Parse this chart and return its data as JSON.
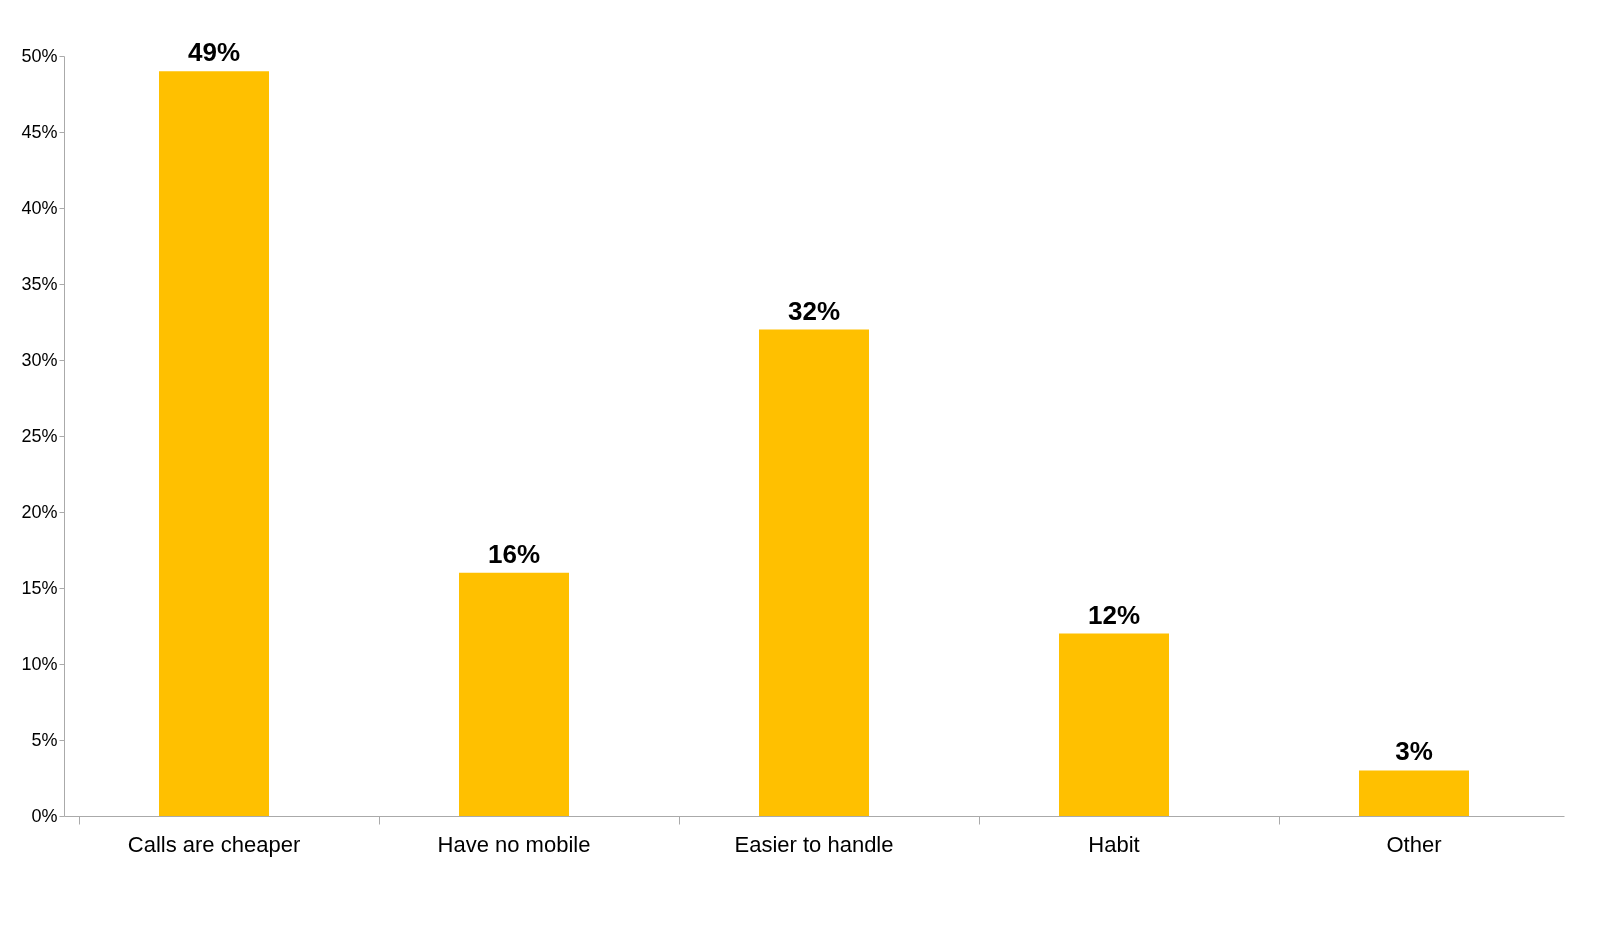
{
  "chart_data": {
    "type": "bar",
    "categories": [
      "Calls are cheaper",
      "Have no mobile",
      "Easier to handle",
      "Habit",
      "Other"
    ],
    "values": [
      49,
      16,
      32,
      12,
      3
    ],
    "value_labels": [
      "49%",
      "16%",
      "32%",
      "12%",
      "3%"
    ],
    "color": "#ffc000",
    "ylim": [
      0,
      50
    ],
    "yticks": [
      {
        "value": 0,
        "label": "0%"
      },
      {
        "value": 5,
        "label": "5%"
      },
      {
        "value": 10,
        "label": "10%"
      },
      {
        "value": 15,
        "label": "15%"
      },
      {
        "value": 20,
        "label": "20%"
      },
      {
        "value": 25,
        "label": "25%"
      },
      {
        "value": 30,
        "label": "30%"
      },
      {
        "value": 35,
        "label": "35%"
      },
      {
        "value": 40,
        "label": "40%"
      },
      {
        "value": 45,
        "label": "45%"
      },
      {
        "value": 50,
        "label": "50%"
      }
    ],
    "grid": false
  }
}
